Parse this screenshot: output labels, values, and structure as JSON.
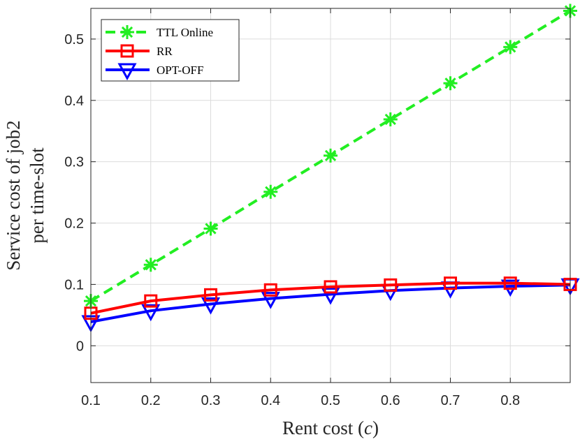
{
  "chart_data": {
    "type": "line",
    "title": "",
    "xlabel_prefix": "Rent cost (",
    "xlabel_var": "c",
    "xlabel_suffix": ")",
    "ylabel_line1": "Service cost of job2",
    "ylabel_line2": "per time-slot",
    "xlim": [
      0.1,
      0.9
    ],
    "ylim": [
      -0.06,
      0.55
    ],
    "xticks": [
      0.1,
      0.2,
      0.3,
      0.4,
      0.5,
      0.6,
      0.7,
      0.8
    ],
    "xtick_labels": [
      "0.1",
      "0.2",
      "0.3",
      "0.4",
      "0.5",
      "0.6",
      "0.7",
      "0.8"
    ],
    "yticks": [
      0,
      0.1,
      0.2,
      0.3,
      0.4,
      0.5
    ],
    "ytick_labels": [
      "0",
      "0.1",
      "0.2",
      "0.3",
      "0.4",
      "0.5"
    ],
    "grid": true,
    "legend_position": "top-left",
    "x": [
      0.1,
      0.2,
      0.3,
      0.4,
      0.5,
      0.6,
      0.7,
      0.8,
      0.9
    ],
    "series": [
      {
        "name": "TTL Online",
        "color": "#22ee22",
        "line_style": "dashed",
        "marker": "asterisk",
        "values": [
          0.073,
          0.132,
          0.191,
          0.251,
          0.31,
          0.369,
          0.428,
          0.487,
          0.546
        ]
      },
      {
        "name": "RR",
        "color": "#ff0000",
        "line_style": "solid",
        "marker": "square",
        "values": [
          0.053,
          0.073,
          0.083,
          0.091,
          0.096,
          0.099,
          0.102,
          0.102,
          0.1
        ]
      },
      {
        "name": "OPT-OFF",
        "color": "#0000ff",
        "line_style": "solid",
        "marker": "triangle-down",
        "values": [
          0.039,
          0.057,
          0.068,
          0.077,
          0.084,
          0.09,
          0.094,
          0.097,
          0.099
        ]
      }
    ]
  }
}
